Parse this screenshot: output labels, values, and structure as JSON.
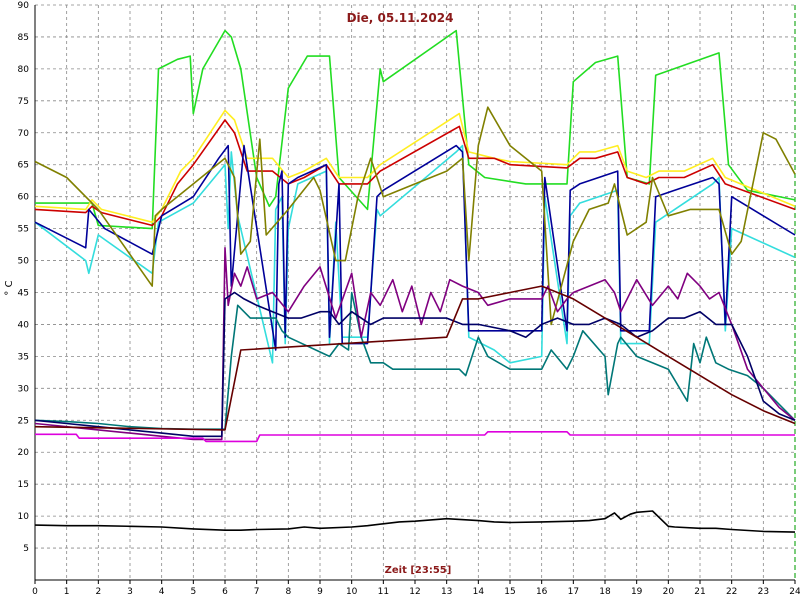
{
  "chart_data": {
    "type": "line",
    "title": "Die, 05.11.2024",
    "xlabel": "Zeit [23:55]",
    "ylabel": "° C",
    "xlim": [
      0,
      24
    ],
    "ylim": [
      0,
      90
    ],
    "xticks": [
      "0",
      "1",
      "2",
      "3",
      "4",
      "5",
      "6",
      "7",
      "8",
      "9",
      "10",
      "11",
      "12",
      "13",
      "14",
      "15",
      "16",
      "17",
      "18",
      "19",
      "20",
      "21",
      "22",
      "23",
      "24"
    ],
    "yticks": [
      "5",
      "10",
      "15",
      "20",
      "25",
      "30",
      "35",
      "40",
      "45",
      "50",
      "55",
      "60",
      "65",
      "70",
      "75",
      "80",
      "85",
      "90"
    ],
    "grid": true,
    "colors": {
      "title": "#8b1a1a",
      "xlabel": "#8b1a1a",
      "grid": "#888888",
      "marker_line": "#22aa22"
    },
    "series": [
      {
        "color": "#22dd22",
        "x": [
          0,
          1.8,
          2,
          3.7,
          3.9,
          4.5,
          4.9,
          5,
          5.3,
          6,
          6.2,
          6.5,
          7,
          7.4,
          7.6,
          8,
          8.6,
          9.3,
          9.6,
          10.5,
          10.9,
          11,
          13.3,
          13.7,
          14.2,
          15.5,
          16.8,
          17,
          17.7,
          18.4,
          18.7,
          19.4,
          19.6,
          21.6,
          21.9,
          22.5,
          24
        ],
        "y": [
          59,
          59,
          55.5,
          55,
          80,
          81.5,
          82,
          73,
          80,
          86,
          85,
          80,
          63,
          58.5,
          60,
          77,
          82,
          82,
          63,
          58,
          80,
          78,
          86,
          65,
          63,
          62,
          62,
          78,
          81,
          82,
          63,
          62,
          79,
          82.5,
          65,
          61,
          59.5
        ]
      },
      {
        "color": "#ffee22",
        "x": [
          0,
          1.6,
          1.8,
          2.1,
          3.7,
          4,
          4.6,
          5,
          6,
          6.3,
          6.7,
          7.5,
          8,
          8.5,
          9.2,
          9.6,
          10.5,
          10.9,
          13.4,
          13.7,
          14.5,
          15,
          16.8,
          17.2,
          17.7,
          18.4,
          18.7,
          19.3,
          19.7,
          20.5,
          21.4,
          21.8,
          24
        ],
        "y": [
          58.5,
          58,
          59.5,
          58,
          56,
          58,
          64,
          66,
          73.5,
          72,
          66,
          66,
          63,
          64,
          66,
          63,
          63,
          65,
          73,
          67,
          66,
          65.5,
          65,
          67,
          67,
          68,
          64,
          63,
          64,
          64,
          66,
          63,
          58.5
        ]
      },
      {
        "color": "#cc0000",
        "x": [
          0,
          1.6,
          1.8,
          2.1,
          3.7,
          4,
          4.5,
          5,
          6,
          6.3,
          6.7,
          7.5,
          8,
          8.5,
          9.2,
          9.6,
          10.5,
          10.9,
          13.4,
          13.7,
          14.5,
          15,
          16.8,
          17.2,
          17.7,
          18.4,
          18.7,
          19.3,
          19.7,
          20.5,
          21.4,
          21.8,
          24
        ],
        "y": [
          58,
          57.5,
          58.5,
          57.5,
          55.5,
          57,
          62,
          65,
          72,
          70,
          64,
          64,
          62,
          63,
          65,
          62,
          62,
          64,
          71,
          66,
          66,
          65,
          64.5,
          66,
          66,
          67,
          63,
          62,
          63,
          63,
          65,
          62,
          58
        ]
      },
      {
        "color": "#33dddd",
        "x": [
          0,
          1.6,
          1.7,
          2,
          3.7,
          3.9,
          5,
          6,
          6.1,
          6.2,
          6.4,
          7.5,
          7.6,
          7.8,
          7.9,
          8,
          8.3,
          9.2,
          9.3,
          9.5,
          9.7,
          10.5,
          10.8,
          10.9,
          13.3,
          13.5,
          13.7,
          14.5,
          15,
          16,
          16.1,
          16.8,
          16.9,
          17.2,
          18.4,
          18.5,
          19.4,
          19.6,
          20.2,
          21.4,
          21.6,
          21.8,
          22,
          24
        ],
        "y": [
          56,
          50,
          48,
          54,
          48,
          56,
          59,
          65,
          55,
          67,
          57,
          34,
          58,
          60,
          37,
          55,
          62,
          64,
          37,
          56,
          38,
          38,
          58,
          57,
          67,
          68,
          38,
          36,
          34,
          35,
          60,
          37,
          57,
          59,
          61,
          37,
          37,
          56,
          58,
          62,
          63,
          39,
          55,
          50.5
        ]
      },
      {
        "color": "#000099",
        "x": [
          0,
          1.6,
          1.7,
          2.2,
          3.7,
          4,
          5,
          5.8,
          6.1,
          6.2,
          6.6,
          7.6,
          7.7,
          7.8,
          7.9,
          8,
          8.3,
          9.2,
          9.3,
          9.6,
          9.7,
          10.5,
          10.8,
          11,
          13.3,
          13.5,
          13.7,
          14.5,
          16,
          16.1,
          16.8,
          16.9,
          17.2,
          18.4,
          18.5,
          19.4,
          19.6,
          20.2,
          21.4,
          21.6,
          21.8,
          22,
          24
        ],
        "y": [
          56,
          52,
          58,
          55,
          51,
          57,
          60,
          66,
          68,
          46,
          68,
          36,
          62,
          64,
          38,
          62,
          63,
          65,
          38,
          62,
          37,
          37,
          60,
          61,
          68,
          67,
          39,
          39,
          39,
          63,
          39,
          61,
          62,
          64,
          39,
          39,
          60,
          61,
          63,
          62,
          40,
          60,
          54
        ]
      },
      {
        "color": "#808000",
        "x": [
          0,
          1,
          2,
          3.7,
          3.8,
          4,
          5,
          6,
          6.3,
          6.5,
          6.8,
          7.1,
          7.3,
          8,
          8.8,
          9,
          9.5,
          9.8,
          10.2,
          10.6,
          11,
          12,
          13,
          13.5,
          13.7,
          14,
          14.3,
          15,
          16,
          16.3,
          17,
          17.5,
          18.1,
          18.3,
          18.7,
          19.3,
          19.5,
          20,
          20.7,
          21.6,
          22,
          22.3,
          23,
          23.4,
          24
        ],
        "y": [
          65.5,
          63,
          58,
          46,
          57,
          58,
          62,
          66,
          63,
          51,
          53,
          69,
          54,
          58,
          63,
          61,
          50,
          50,
          60,
          66,
          60,
          62,
          64,
          66,
          50,
          68,
          74,
          68,
          64,
          40,
          53,
          58,
          59,
          62,
          54,
          56,
          63,
          57,
          58,
          58,
          51,
          53,
          70,
          69,
          63.5
        ]
      },
      {
        "color": "#007777",
        "x": [
          0,
          1,
          2,
          3,
          4,
          5,
          6,
          6.2,
          6.4,
          6.8,
          7.6,
          7.8,
          8,
          9.3,
          9.6,
          9.9,
          10,
          10.3,
          10.6,
          11,
          11.3,
          12,
          13.4,
          13.6,
          14,
          14.3,
          15,
          16,
          16.3,
          16.8,
          17,
          17.3,
          18,
          18.1,
          18.4,
          18.5,
          19,
          20,
          20.6,
          20.8,
          21,
          21.2,
          21.5,
          21.9,
          22.5,
          23,
          24
        ],
        "y": [
          25,
          24.8,
          24.5,
          24,
          23.7,
          23.6,
          23.6,
          35,
          43,
          41,
          41,
          39,
          38,
          35,
          37,
          36,
          45,
          38,
          34,
          34,
          33,
          33,
          33,
          32,
          38,
          35,
          33,
          33,
          36,
          33,
          35,
          39,
          35,
          29,
          37,
          38,
          35,
          33,
          28,
          37,
          34,
          38,
          34,
          33,
          32,
          30,
          25
        ]
      },
      {
        "color": "#800080",
        "x": [
          0,
          1,
          2,
          3,
          4,
          5,
          5.9,
          6,
          6.1,
          6.3,
          6.5,
          6.7,
          7,
          7.5,
          8,
          8.5,
          9,
          9.5,
          10,
          10.3,
          10.6,
          10.9,
          11.3,
          11.6,
          11.9,
          12.2,
          12.5,
          12.8,
          13.1,
          13.5,
          14,
          14.3,
          15,
          16,
          16.2,
          16.5,
          16.8,
          17,
          17.5,
          18,
          18.3,
          18.5,
          19,
          19.5,
          20,
          20.3,
          20.6,
          21,
          21.3,
          21.6,
          22,
          22.5,
          23,
          23.5,
          24
        ],
        "y": [
          24.5,
          24,
          23.5,
          23,
          22.5,
          22,
          22,
          52,
          43,
          48,
          46,
          49,
          44,
          45,
          42,
          46,
          49,
          41,
          48,
          38,
          45,
          43,
          47,
          42,
          46,
          40,
          45,
          42,
          47,
          46,
          45,
          43,
          44,
          44,
          46,
          42,
          44,
          45,
          46,
          47,
          45,
          42,
          47,
          43,
          46,
          44,
          48,
          46,
          44,
          45,
          40,
          33,
          30,
          27,
          25
        ]
      },
      {
        "color": "#000066",
        "x": [
          0,
          1,
          2,
          3,
          4,
          5,
          5.9,
          6,
          6.3,
          6.6,
          7,
          7.5,
          8,
          8.4,
          9,
          9.3,
          9.6,
          10,
          10.3,
          10.6,
          11,
          12,
          13,
          13.5,
          14,
          15,
          15.5,
          16,
          16.5,
          17,
          17.5,
          18,
          18.5,
          19,
          19.5,
          20,
          20.5,
          21,
          21.5,
          22,
          22.5,
          23,
          23.5,
          24
        ],
        "y": [
          25,
          24.5,
          24,
          23.5,
          23,
          22.5,
          22.5,
          44,
          45,
          44,
          43,
          42,
          41,
          41,
          42,
          42,
          40,
          42,
          41,
          40,
          41,
          41,
          41,
          40,
          40,
          39,
          38,
          40,
          41,
          40,
          40,
          41,
          40,
          38,
          39,
          41,
          41,
          42,
          40,
          40,
          35,
          28,
          26,
          25
        ]
      },
      {
        "color": "#660000",
        "x": [
          0,
          6,
          6.5,
          13,
          13.5,
          14,
          15,
          16,
          16.5,
          17,
          18,
          19,
          20,
          21,
          22,
          23,
          24
        ],
        "y": [
          24,
          23.5,
          36,
          38,
          44,
          44,
          45,
          46,
          45,
          44,
          41,
          38,
          35,
          32,
          29,
          26.5,
          24.5
        ]
      },
      {
        "color": "#dd00dd",
        "x": [
          0,
          1.3,
          1.4,
          5.3,
          5.4,
          7,
          7.1,
          14.2,
          14.3,
          16.8,
          16.9,
          24
        ],
        "y": [
          22.8,
          22.8,
          22.2,
          22.2,
          21.7,
          21.7,
          22.7,
          22.7,
          23.2,
          23.2,
          22.7,
          22.7
        ]
      },
      {
        "color": "#000000",
        "x": [
          0,
          1,
          2,
          3,
          4,
          5,
          6,
          6.5,
          7,
          8,
          8.5,
          9,
          10,
          10.5,
          11,
          11.5,
          12,
          13,
          14,
          14.5,
          15,
          16,
          17,
          17.5,
          18,
          18.3,
          18.5,
          18.8,
          19,
          19.5,
          20,
          20.2,
          21,
          21.5,
          22,
          23,
          24
        ],
        "y": [
          8.6,
          8.5,
          8.5,
          8.4,
          8.3,
          8,
          7.8,
          7.8,
          7.9,
          8,
          8.3,
          8.1,
          8.3,
          8.5,
          8.8,
          9.1,
          9.2,
          9.6,
          9.3,
          9.1,
          9,
          9.1,
          9.2,
          9.3,
          9.6,
          10.5,
          9.5,
          10.3,
          10.6,
          10.8,
          8.4,
          8.3,
          8.1,
          8.1,
          7.9,
          7.6,
          7.5
        ]
      }
    ]
  }
}
